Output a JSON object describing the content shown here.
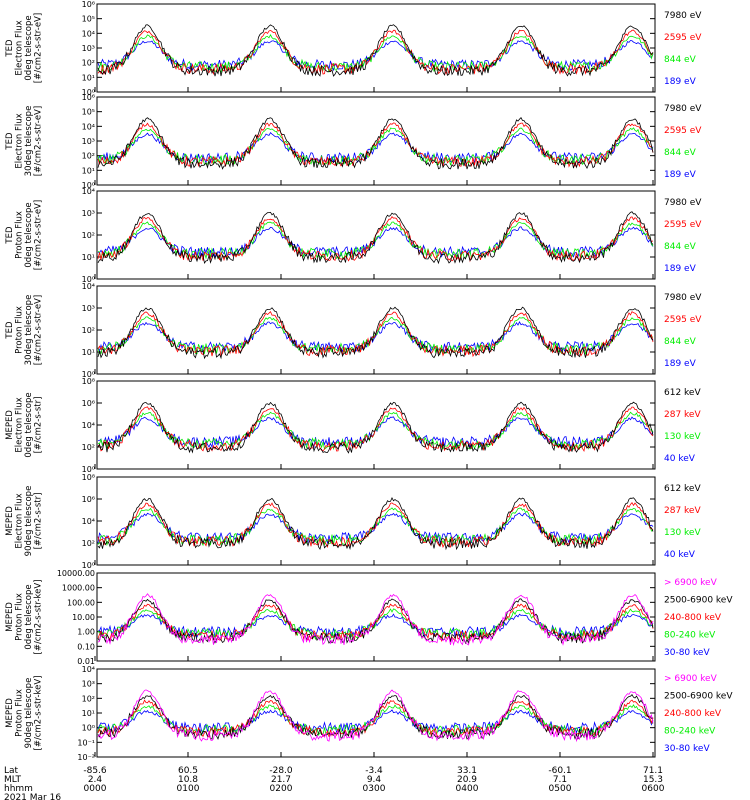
{
  "chart_data": {
    "type": "line",
    "date": "2021 Mar 16",
    "panels": [
      {
        "id": "ted-e-0",
        "ylabel_lines": [
          "TED",
          "Electron Flux",
          "0deg telescope",
          "[#/cm2-s-str-eV]"
        ],
        "yticks": [
          "10⁰",
          "10¹",
          "10²",
          "10³",
          "10⁴",
          "10⁵",
          "10⁶"
        ],
        "legend": [
          {
            "text": "7980 eV",
            "color": "#000000"
          },
          {
            "text": "2595 eV",
            "color": "#ff0000"
          },
          {
            "text": "844 eV",
            "color": "#00ee00"
          },
          {
            "text": "189 eV",
            "color": "#0000ff"
          }
        ]
      },
      {
        "id": "ted-e-30",
        "ylabel_lines": [
          "TED",
          "Electron Flux",
          "30deg telescope",
          "[#/cm2-s-str-eV]"
        ],
        "yticks": [
          "10⁰",
          "10¹",
          "10²",
          "10³",
          "10⁴",
          "10⁵",
          "10⁶"
        ],
        "legend": [
          {
            "text": "7980 eV",
            "color": "#000000"
          },
          {
            "text": "2595 eV",
            "color": "#ff0000"
          },
          {
            "text": "844 eV",
            "color": "#00ee00"
          },
          {
            "text": "189 eV",
            "color": "#0000ff"
          }
        ]
      },
      {
        "id": "ted-p-0",
        "ylabel_lines": [
          "TED",
          "Proton Flux",
          "0deg telescope",
          "[#/cm2-s-str-eV]"
        ],
        "yticks": [
          "10⁰",
          "10¹",
          "10²",
          "10³",
          "10⁴"
        ],
        "legend": [
          {
            "text": "7980 eV",
            "color": "#000000"
          },
          {
            "text": "2595 eV",
            "color": "#ff0000"
          },
          {
            "text": "844 eV",
            "color": "#00ee00"
          },
          {
            "text": "189 eV",
            "color": "#0000ff"
          }
        ]
      },
      {
        "id": "ted-p-30",
        "ylabel_lines": [
          "TED",
          "Proton Flux",
          "30deg telescope",
          "[#/cm2-s-str-eV]"
        ],
        "yticks": [
          "10⁰",
          "10¹",
          "10²",
          "10³",
          "10⁴"
        ],
        "legend": [
          {
            "text": "7980 eV",
            "color": "#000000"
          },
          {
            "text": "2595 eV",
            "color": "#ff0000"
          },
          {
            "text": "844 eV",
            "color": "#00ee00"
          },
          {
            "text": "189 eV",
            "color": "#0000ff"
          }
        ]
      },
      {
        "id": "meped-e-0",
        "ylabel_lines": [
          "MEPED",
          "Electron Flux",
          "0deg telescope",
          "[#/cm2-s-str]"
        ],
        "yticks": [
          "10⁰",
          "10²",
          "10⁴",
          "10⁶",
          "10⁸"
        ],
        "legend": [
          {
            "text": "612 keV",
            "color": "#000000"
          },
          {
            "text": "287 keV",
            "color": "#ff0000"
          },
          {
            "text": "130 keV",
            "color": "#00ee00"
          },
          {
            "text": "40 keV",
            "color": "#0000ff"
          }
        ]
      },
      {
        "id": "meped-e-90",
        "ylabel_lines": [
          "MEPED",
          "Electron Flux",
          "90deg telescope",
          "[#/cm2-s-str]"
        ],
        "yticks": [
          "10⁰",
          "10²",
          "10⁴",
          "10⁶",
          "10⁸"
        ],
        "legend": [
          {
            "text": "612 keV",
            "color": "#000000"
          },
          {
            "text": "287 keV",
            "color": "#ff0000"
          },
          {
            "text": "130 keV",
            "color": "#00ee00"
          },
          {
            "text": "40 keV",
            "color": "#0000ff"
          }
        ]
      },
      {
        "id": "meped-p-0",
        "ylabel_lines": [
          "MEPED",
          "Proton Flux",
          "0deg telescope",
          "[#/cm2-s-str-keV]"
        ],
        "yticks": [
          "0.01",
          "0.10",
          "1.00",
          "10.00",
          "100.00",
          "1000.00",
          "10000.00"
        ],
        "legend": [
          {
            "text": "> 6900 keV",
            "color": "#ff00ff"
          },
          {
            "text": "2500-6900 keV",
            "color": "#000000"
          },
          {
            "text": "240-800 keV",
            "color": "#ff0000"
          },
          {
            "text": "80-240 keV",
            "color": "#00ee00"
          },
          {
            "text": "30-80 keV",
            "color": "#0000ff"
          }
        ]
      },
      {
        "id": "meped-p-90",
        "ylabel_lines": [
          "MEPED",
          "Proton Flux",
          "90deg telescope",
          "[#/cm2-s-str-keV]"
        ],
        "yticks": [
          "10⁻²",
          "10⁻¹",
          "10⁰",
          "10¹",
          "10²",
          "10³",
          "10⁴"
        ],
        "legend": [
          {
            "text": "> 6900 keV",
            "color": "#ff00ff"
          },
          {
            "text": "2500-6900 keV",
            "color": "#000000"
          },
          {
            "text": "240-800 keV",
            "color": "#ff0000"
          },
          {
            "text": "80-240 keV",
            "color": "#00ee00"
          },
          {
            "text": "30-80 keV",
            "color": "#0000ff"
          }
        ]
      }
    ],
    "xaxis": {
      "row_labels": [
        "Lat",
        "MLT",
        "hhmm",
        "2021 Mar 16"
      ],
      "ticks": [
        {
          "lat": "-85.6",
          "mlt": "2.4",
          "hhmm": "0000"
        },
        {
          "lat": "60.5",
          "mlt": "10.8",
          "hhmm": "0100"
        },
        {
          "lat": "-28.0",
          "mlt": "21.7",
          "hhmm": "0200"
        },
        {
          "lat": "-3.4",
          "mlt": "9.4",
          "hhmm": "0300"
        },
        {
          "lat": "33.1",
          "mlt": "20.9",
          "hhmm": "0400"
        },
        {
          "lat": "-60.1",
          "mlt": "7.1",
          "hhmm": "0500"
        },
        {
          "lat": "71.1",
          "mlt": "15.3",
          "hhmm": "0600"
        }
      ]
    }
  }
}
